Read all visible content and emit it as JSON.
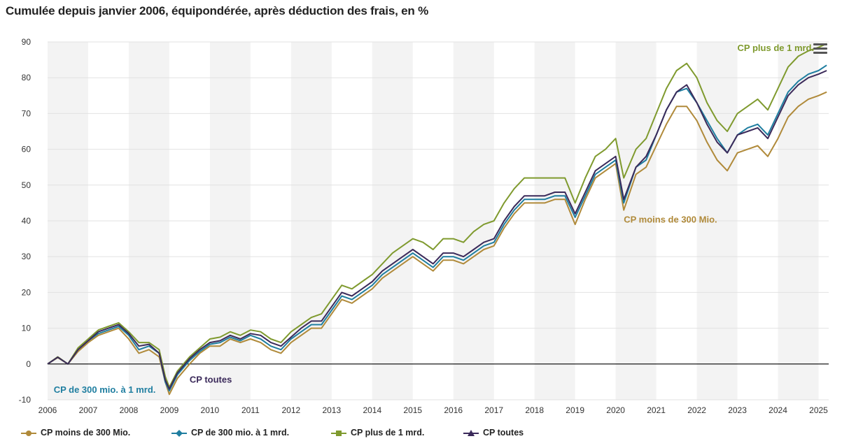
{
  "title": "Cumulée depuis janvier 2006, équipondérée, après déduction des frais, en %",
  "menu": {
    "icon": "hamburger-menu-icon"
  },
  "legend": [
    {
      "label": "CP moins de 300 Mio.",
      "color": "#b08a3a",
      "marker": "circle"
    },
    {
      "label": "CP de 300 mio. à 1 mrd.",
      "color": "#1f7ea0",
      "marker": "diamond"
    },
    {
      "label": "CP plus de 1 mrd.",
      "color": "#7f9a2e",
      "marker": "square"
    },
    {
      "label": "CP toutes",
      "color": "#3b2a5a",
      "marker": "triangle"
    }
  ],
  "chart_data": {
    "type": "line",
    "title": "Cumulée depuis janvier 2006, équipondérée, après déduction des frais, en %",
    "xlabel": "",
    "ylabel": "",
    "xlim": [
      2006,
      2025.25
    ],
    "ylim": [
      -10,
      90
    ],
    "yticks": [
      -10,
      0,
      10,
      20,
      30,
      40,
      50,
      60,
      70,
      80,
      90
    ],
    "yticklabels": [
      "-10",
      "0",
      "10",
      "20",
      "30",
      "40",
      "50",
      "60",
      "70",
      "80",
      "90"
    ],
    "xticks": [
      2006,
      2007,
      2008,
      2009,
      2010,
      2011,
      2012,
      2013,
      2014,
      2015,
      2016,
      2017,
      2018,
      2019,
      2020,
      2021,
      2022,
      2023,
      2024,
      2025
    ],
    "xticklabels": [
      "2006",
      "2007",
      "2008",
      "2009",
      "2010",
      "2011",
      "2012",
      "2013",
      "2014",
      "2015",
      "2016",
      "2017",
      "2018",
      "2019",
      "2020",
      "2021",
      "2022",
      "2023",
      "2024",
      "2025"
    ],
    "x": [
      2006.0,
      2006.25,
      2006.5,
      2006.75,
      2007.0,
      2007.25,
      2007.5,
      2007.75,
      2008.0,
      2008.25,
      2008.5,
      2008.75,
      2008.9,
      2009.0,
      2009.2,
      2009.5,
      2009.75,
      2010.0,
      2010.25,
      2010.5,
      2010.75,
      2011.0,
      2011.25,
      2011.5,
      2011.75,
      2012.0,
      2012.25,
      2012.5,
      2012.75,
      2013.0,
      2013.25,
      2013.5,
      2013.75,
      2014.0,
      2014.25,
      2014.5,
      2014.75,
      2015.0,
      2015.25,
      2015.5,
      2015.75,
      2016.0,
      2016.25,
      2016.5,
      2016.75,
      2017.0,
      2017.25,
      2017.5,
      2017.75,
      2018.0,
      2018.25,
      2018.5,
      2018.75,
      2019.0,
      2019.25,
      2019.5,
      2019.75,
      2020.0,
      2020.2,
      2020.5,
      2020.75,
      2021.0,
      2021.25,
      2021.5,
      2021.75,
      2022.0,
      2022.25,
      2022.5,
      2022.75,
      2023.0,
      2023.25,
      2023.5,
      2023.75,
      2024.0,
      2024.25,
      2024.5,
      2024.75,
      2025.0,
      2025.2
    ],
    "series": [
      {
        "name": "CP moins de 300 Mio.",
        "color": "#b08a3a",
        "values": [
          0,
          1.8,
          0,
          3.5,
          6,
          8,
          9,
          10,
          7,
          3,
          4,
          2,
          -5,
          -8.5,
          -4,
          0,
          3,
          5,
          5,
          7,
          6,
          7,
          6,
          4,
          3,
          6,
          8,
          10,
          10,
          14,
          18,
          17,
          19,
          21,
          24,
          26,
          28,
          30,
          28,
          26,
          29,
          29,
          28,
          30,
          32,
          33,
          38,
          42,
          45,
          45,
          45,
          46,
          46,
          39,
          46,
          52,
          54,
          56,
          43,
          53,
          55,
          61,
          67,
          72,
          72,
          68,
          62,
          57,
          54,
          59,
          60,
          61,
          58,
          63,
          69,
          72,
          74,
          75,
          76
        ]
      },
      {
        "name": "CP de 300 mio. à 1 mrd.",
        "color": "#1f7ea0",
        "values": [
          0,
          1.9,
          0,
          4,
          6.5,
          8.5,
          9.5,
          10.5,
          8,
          4,
          5,
          3,
          -5,
          -7.5,
          -3,
          1,
          3.5,
          5.5,
          6,
          7.5,
          6.5,
          8,
          7,
          5,
          4,
          7,
          9,
          11,
          11,
          15,
          19,
          18,
          20,
          22,
          25,
          27,
          29,
          31,
          29,
          27,
          30,
          30,
          29,
          31,
          33,
          34,
          39,
          43,
          46,
          46,
          46,
          47,
          47,
          41,
          47,
          53,
          55,
          57,
          45,
          55,
          57,
          64,
          71,
          76,
          77,
          73,
          68,
          63,
          59,
          64,
          66,
          67,
          64,
          70,
          76,
          79,
          81,
          82,
          83.5
        ]
      },
      {
        "name": "CP plus de 1 mrd.",
        "color": "#7f9a2e",
        "values": [
          0,
          2,
          0,
          4.5,
          7,
          9.5,
          10.5,
          11.5,
          9,
          6,
          6,
          4,
          -3.5,
          -6.5,
          -2,
          2,
          4.5,
          7,
          7.5,
          9,
          8,
          9.5,
          9,
          7,
          6,
          9,
          11,
          13,
          14,
          18,
          22,
          21,
          23,
          25,
          28,
          31,
          33,
          35,
          34,
          32,
          35,
          35,
          34,
          37,
          39,
          40,
          45,
          49,
          52,
          52,
          52,
          52,
          52,
          45,
          52,
          58,
          60,
          63,
          52,
          60,
          63,
          70,
          77,
          82,
          84,
          80,
          73,
          68,
          65,
          70,
          72,
          74,
          71,
          77,
          83,
          86,
          87.5,
          88.5,
          89.5
        ]
      },
      {
        "name": "CP toutes",
        "color": "#3b2a5a",
        "values": [
          0,
          1.9,
          0,
          4,
          6.5,
          9,
          10,
          11,
          8.5,
          5,
          5.5,
          3,
          -4.5,
          -7,
          -2.5,
          1.5,
          4,
          6,
          6.5,
          8,
          7,
          8.5,
          8,
          6,
          5,
          7.5,
          10,
          12,
          12,
          16,
          20,
          19,
          21,
          23,
          26,
          28,
          30,
          32,
          30,
          28,
          31,
          31,
          30,
          32,
          34,
          35,
          40,
          44,
          47,
          47,
          47,
          48,
          48,
          42,
          48,
          54,
          56,
          58,
          46,
          55,
          58,
          64,
          71,
          76,
          78,
          73,
          67,
          62,
          59,
          64,
          65,
          66,
          63,
          69,
          75,
          78,
          80,
          81,
          82
        ]
      }
    ],
    "annotations": [
      {
        "text": "CP plus de 1 mrd.",
        "series": "CP plus de 1 mrd.",
        "x": 2023.0,
        "y": 87.5,
        "color": "#7f9a2e"
      },
      {
        "text": "CP moins de 300 Mio.",
        "series": "CP moins de 300 Mio.",
        "x": 2020.2,
        "y": 39.5,
        "color": "#b08a3a"
      },
      {
        "text": "CP de 300 mio. à 1 mrd.",
        "series": "CP de 300 mio. à 1 mrd.",
        "x": 2006.15,
        "y": -8,
        "color": "#1f7ea0"
      },
      {
        "text": "CP toutes",
        "series": "CP toutes",
        "x": 2009.5,
        "y": -5.2,
        "color": "#3b2a5a"
      }
    ],
    "grid": true,
    "legend_position": "bottom"
  }
}
